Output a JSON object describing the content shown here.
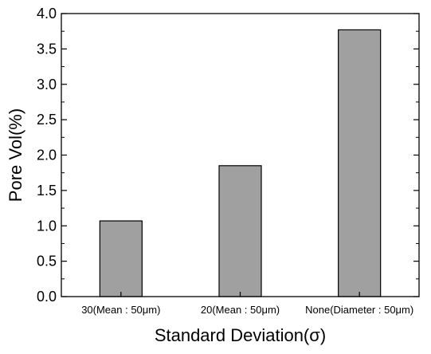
{
  "chart_data": {
    "type": "bar",
    "title": "",
    "xlabel": "Standard Deviation(σ)",
    "ylabel": "Pore Vol(%)",
    "categories": [
      "30(Mean : 50μm)",
      "20(Mean : 50μm)",
      "None(Diameter : 50μm)"
    ],
    "values": [
      1.07,
      1.85,
      3.77
    ],
    "ylim": [
      0.0,
      4.0
    ],
    "yticks": [
      "0.0",
      "0.5",
      "1.0",
      "1.5",
      "2.0",
      "2.5",
      "3.0",
      "3.5",
      "4.0"
    ],
    "bar_color": "#a0a0a0",
    "grid": false,
    "legend": "none"
  }
}
